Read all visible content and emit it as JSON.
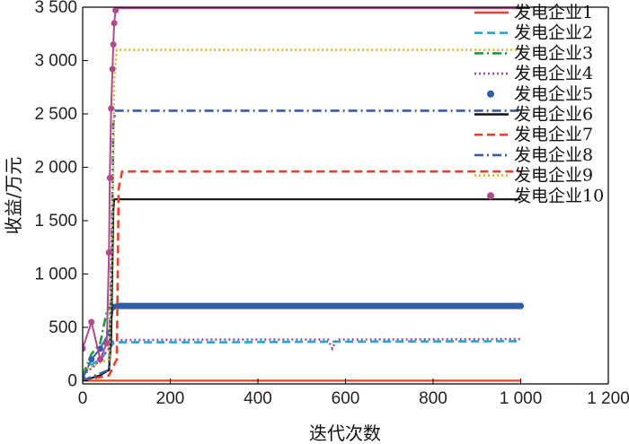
{
  "chart_data": {
    "type": "line",
    "title": "",
    "xlabel": "迭代次数",
    "ylabel": "收益/万元",
    "xlim": [
      0,
      1200
    ],
    "ylim": [
      -30,
      3500
    ],
    "xticks": [
      0,
      200,
      400,
      600,
      800,
      1000,
      1200
    ],
    "xtick_labels": [
      "0",
      "200",
      "400",
      "600",
      "800",
      "1 000",
      "1 200"
    ],
    "yticks": [
      0,
      500,
      1000,
      1500,
      2000,
      2500,
      3000,
      3500
    ],
    "ytick_labels": [
      "0",
      "500",
      "1 000",
      "1 500",
      "2 000",
      "2 500",
      "3 000",
      "3 500"
    ],
    "grid": false,
    "legend_position": "top-right",
    "series": [
      {
        "name": "发电企业1",
        "color": "#e8412b",
        "style": "solid",
        "x": [
          0,
          60,
          80,
          1000
        ],
        "y": [
          0,
          0,
          0,
          0
        ]
      },
      {
        "name": "发电企业2",
        "color": "#1fa8d6",
        "style": "dashed",
        "x": [
          0,
          20,
          40,
          60,
          70,
          80,
          300,
          560,
          1000
        ],
        "y": [
          50,
          150,
          200,
          300,
          350,
          360,
          360,
          365,
          370
        ]
      },
      {
        "name": "发电企业3",
        "color": "#1f9a48",
        "style": "dashdot",
        "x": [
          0,
          20,
          40,
          55,
          60,
          65,
          70,
          80,
          400,
          1000
        ],
        "y": [
          50,
          250,
          350,
          650,
          680,
          700,
          710,
          710,
          710,
          710
        ]
      },
      {
        "name": "发电企业4",
        "color": "#9b4fa3",
        "style": "dotted",
        "x": [
          0,
          30,
          60,
          70,
          80,
          300,
          560,
          570,
          580,
          1000
        ],
        "y": [
          50,
          150,
          300,
          370,
          380,
          385,
          385,
          300,
          385,
          390
        ]
      },
      {
        "name": "发电企业5",
        "color": "#2f5fa8",
        "style": "dots",
        "x": [
          0,
          20,
          40,
          60,
          70,
          80,
          1000
        ],
        "y": [
          20,
          200,
          300,
          450,
          690,
          700,
          700
        ]
      },
      {
        "name": "发电企业6",
        "color": "#111111",
        "style": "solid",
        "x": [
          0,
          40,
          60,
          65,
          70,
          72,
          1000
        ],
        "y": [
          0,
          50,
          100,
          400,
          1600,
          1700,
          1700
        ]
      },
      {
        "name": "发电企业7",
        "color": "#e8412b",
        "style": "dashed",
        "x": [
          0,
          60,
          78,
          82,
          90,
          1000
        ],
        "y": [
          0,
          50,
          200,
          1800,
          1960,
          1960
        ]
      },
      {
        "name": "发电企业8",
        "color": "#3a5ba0",
        "style": "dashdot",
        "x": [
          0,
          60,
          65,
          68,
          70,
          75,
          1000
        ],
        "y": [
          0,
          100,
          1000,
          1700,
          2400,
          2530,
          2530
        ]
      },
      {
        "name": "发电企业9",
        "color": "#d6b92a",
        "style": "dotted",
        "x": [
          0,
          60,
          65,
          70,
          72,
          78,
          1000
        ],
        "y": [
          100,
          200,
          900,
          2000,
          2800,
          3100,
          3100
        ]
      },
      {
        "name": "发电企业10",
        "color": "#b04a8c",
        "style": "dots",
        "x": [
          0,
          20,
          40,
          55,
          60,
          62,
          65,
          68,
          70,
          72,
          75,
          80,
          1000
        ],
        "y": [
          300,
          550,
          200,
          350,
          1200,
          1900,
          2550,
          2920,
          3150,
          3350,
          3470,
          3510,
          3510
        ]
      }
    ]
  }
}
